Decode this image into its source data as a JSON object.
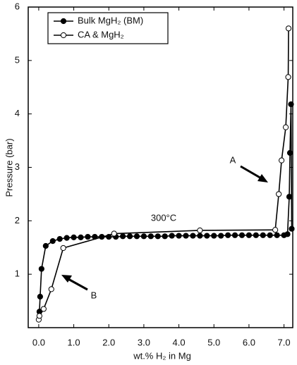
{
  "chart_data": {
    "type": "line",
    "xlabel": "wt.% H₂ in Mg",
    "ylabel": "Pressure (bar)",
    "xlim": [
      -0.3,
      7.25
    ],
    "ylim": [
      0,
      6
    ],
    "xticks": [
      {
        "value": 0,
        "label": "0.0"
      },
      {
        "value": 1,
        "label": "1.0"
      },
      {
        "value": 2,
        "label": "2.0"
      },
      {
        "value": 3,
        "label": "3.0"
      },
      {
        "value": 4,
        "label": "4.0"
      },
      {
        "value": 5,
        "label": "5.0"
      },
      {
        "value": 6,
        "label": "6.0"
      },
      {
        "value": 7,
        "label": "7.0"
      }
    ],
    "yticks": [
      1,
      2,
      3,
      4,
      5,
      6
    ],
    "legend": "upper left",
    "annotations": [
      "A",
      "B",
      "300°C"
    ],
    "series": [
      {
        "name": "Bulk MgH₂ (BM)",
        "color": "#000000",
        "marker": "filled",
        "x": [
          0.02,
          0.04,
          0.08,
          0.2,
          0.4,
          0.6,
          0.8,
          1.0,
          1.2,
          1.4,
          1.6,
          1.8,
          2.0,
          2.2,
          2.4,
          2.6,
          2.8,
          3.0,
          3.2,
          3.4,
          3.6,
          3.8,
          4.0,
          4.2,
          4.4,
          4.6,
          4.8,
          5.0,
          5.2,
          5.4,
          5.6,
          5.8,
          6.0,
          6.2,
          6.4,
          6.6,
          6.8,
          7.0,
          7.1,
          7.15,
          7.17,
          7.2,
          7.22
        ],
        "values": [
          0.3,
          0.58,
          1.1,
          1.53,
          1.62,
          1.66,
          1.68,
          1.69,
          1.69,
          1.7,
          1.7,
          1.7,
          1.7,
          1.7,
          1.71,
          1.71,
          1.71,
          1.71,
          1.71,
          1.71,
          1.71,
          1.72,
          1.72,
          1.72,
          1.72,
          1.72,
          1.72,
          1.72,
          1.72,
          1.73,
          1.73,
          1.73,
          1.73,
          1.73,
          1.73,
          1.73,
          1.73,
          1.73,
          1.75,
          2.45,
          3.27,
          4.18,
          1.85
        ]
      },
      {
        "name": "CA & MgH₂",
        "color": "#000000",
        "marker": "open",
        "x": [
          0.0,
          0.02,
          0.14,
          0.36,
          0.7,
          2.15,
          4.6,
          6.75,
          6.85,
          6.93,
          7.05,
          7.12,
          7.13
        ],
        "values": [
          0.15,
          0.22,
          0.35,
          0.72,
          1.49,
          1.76,
          1.82,
          1.83,
          2.5,
          3.13,
          3.75,
          4.69,
          5.6
        ]
      }
    ]
  }
}
